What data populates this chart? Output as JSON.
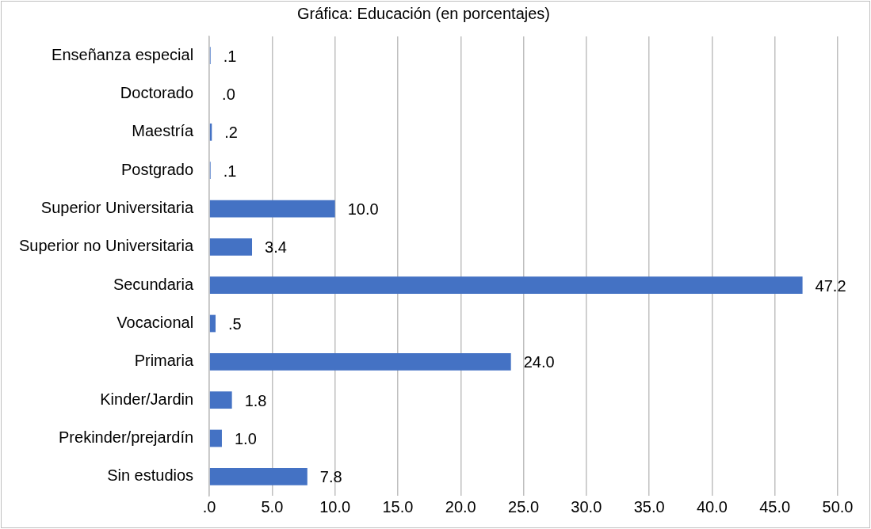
{
  "chart_data": {
    "type": "bar",
    "orientation": "horizontal",
    "title": "Gráfica: Educación (en porcentajes)",
    "categories": [
      "Enseñanza especial",
      "Doctorado",
      "Maestría",
      "Postgrado",
      "Superior Universitaria",
      "Superior no Universitaria",
      "Secundaria",
      "Vocacional",
      "Primaria",
      "Kinder/Jardin",
      "Prekinder/prejardín",
      "Sin estudios"
    ],
    "values": [
      0.1,
      0,
      0.2,
      0.1,
      10.0,
      3.4,
      47.2,
      0.5,
      24.0,
      1.8,
      1.0,
      7.8
    ],
    "value_labels": [
      ".1",
      ".0",
      ".2",
      ".1",
      "10.0",
      "3.4",
      "47.2",
      ".5",
      "24.0",
      "1.8",
      "1.0",
      "7.8"
    ],
    "color": "#4472c4",
    "xlim": [
      0,
      50
    ],
    "xticks": [
      {
        "value": 0,
        "label": ".0"
      },
      {
        "value": 5,
        "label": "5.0"
      },
      {
        "value": 10,
        "label": "10.0"
      },
      {
        "value": 15,
        "label": "15.0"
      },
      {
        "value": 20,
        "label": "20.0"
      },
      {
        "value": 25,
        "label": "25.0"
      },
      {
        "value": 30,
        "label": "30.0"
      },
      {
        "value": 35,
        "label": "35.0"
      },
      {
        "value": 40,
        "label": "40.0"
      },
      {
        "value": 45,
        "label": "45.0"
      },
      {
        "value": 50,
        "label": "50.0"
      }
    ],
    "grid": "x",
    "legend": false
  }
}
